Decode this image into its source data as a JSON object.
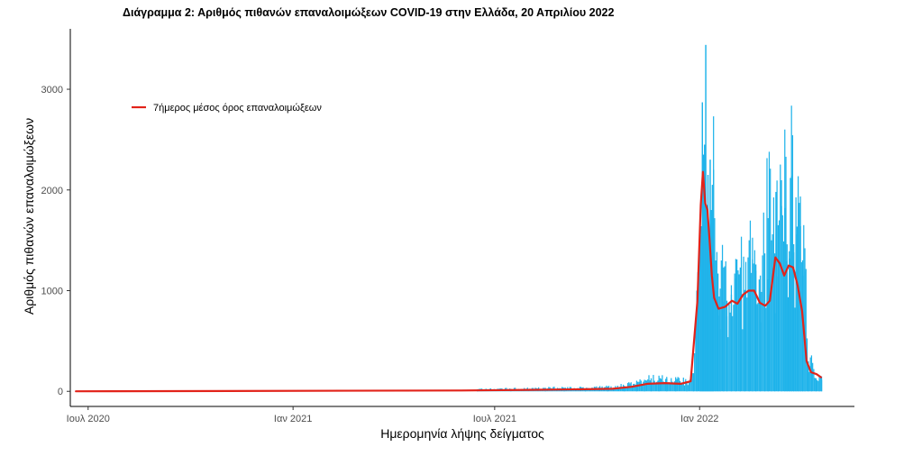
{
  "chart_data": {
    "type": "bar",
    "title": "Διάγραμμα 2: Αριθμός πιθανών επαναλοιμώξεων COVID-19 στην Ελλάδα, 20 Απριλίου 2022",
    "xlabel": "Ημερομηνία λήψης δείγματος",
    "ylabel": "Αριθμός πιθανών επαναλοιμώξεων",
    "x_range": [
      "2020-06-15",
      "2022-05-20"
    ],
    "ylim": [
      -150,
      3600
    ],
    "x_ticks": [
      {
        "date": "2020-07-01",
        "label": "Ιουλ 2020"
      },
      {
        "date": "2021-01-01",
        "label": "Ιαν 2021"
      },
      {
        "date": "2021-07-01",
        "label": "Ιουλ 2021"
      },
      {
        "date": "2022-01-01",
        "label": "Ιαν 2022"
      }
    ],
    "y_ticks": [
      0,
      1000,
      2000,
      3000
    ],
    "bar_color": "#1fb3ea",
    "grid": false,
    "legend": {
      "position": "top-left",
      "entries": [
        {
          "label": "7ήμερος μέσος όρος επαναλοιμώξεων",
          "color": "#e2231a"
        }
      ]
    },
    "series": [
      {
        "type": "bar",
        "values": [
          [
            "2021-06-15",
            20
          ],
          [
            "2021-07-15",
            25
          ],
          [
            "2021-08-15",
            30
          ],
          [
            "2021-09-01",
            35
          ],
          [
            "2021-09-20",
            30
          ],
          [
            "2021-10-10",
            40
          ],
          [
            "2021-10-25",
            55
          ],
          [
            "2021-11-05",
            80
          ],
          [
            "2021-11-12",
            115
          ],
          [
            "2021-11-18",
            130
          ],
          [
            "2021-11-25",
            120
          ],
          [
            "2021-12-02",
            125
          ],
          [
            "2021-12-10",
            110
          ],
          [
            "2021-12-20",
            90
          ],
          [
            "2021-12-26",
            180
          ],
          [
            "2021-12-29",
            1000
          ],
          [
            "2022-01-01",
            1550
          ],
          [
            "2022-01-02",
            1640
          ],
          [
            "2022-01-03",
            2870
          ],
          [
            "2022-01-04",
            2350
          ],
          [
            "2022-01-05",
            2450
          ],
          [
            "2022-01-06",
            3440
          ],
          [
            "2022-01-07",
            1850
          ],
          [
            "2022-01-08",
            2150
          ],
          [
            "2022-01-09",
            1600
          ],
          [
            "2022-01-10",
            2300
          ],
          [
            "2022-01-11",
            1800
          ],
          [
            "2022-01-12",
            2050
          ],
          [
            "2022-01-13",
            2200
          ],
          [
            "2022-01-15",
            1300
          ],
          [
            "2022-01-17",
            1170
          ],
          [
            "2022-01-19",
            1020
          ],
          [
            "2022-01-22",
            1230
          ],
          [
            "2022-01-25",
            900
          ],
          [
            "2022-01-29",
            960
          ],
          [
            "2022-02-02",
            1120
          ],
          [
            "2022-02-06",
            1230
          ],
          [
            "2022-02-10",
            1000
          ],
          [
            "2022-02-14",
            1500
          ],
          [
            "2022-02-17",
            1310
          ],
          [
            "2022-02-20",
            1260
          ],
          [
            "2022-02-24",
            1150
          ],
          [
            "2022-02-28",
            1370
          ],
          [
            "2022-03-03",
            1720
          ],
          [
            "2022-03-06",
            1500
          ],
          [
            "2022-03-09",
            1370
          ],
          [
            "2022-03-12",
            1650
          ],
          [
            "2022-03-15",
            1840
          ],
          [
            "2022-03-18",
            1820
          ],
          [
            "2022-03-20",
            1460
          ],
          [
            "2022-03-22",
            1320
          ],
          [
            "2022-03-24",
            2140
          ],
          [
            "2022-03-26",
            1380
          ],
          [
            "2022-03-28",
            1560
          ],
          [
            "2022-03-30",
            1700
          ],
          [
            "2022-04-01",
            1640
          ],
          [
            "2022-04-03",
            1150
          ],
          [
            "2022-04-05",
            1190
          ],
          [
            "2022-04-08",
            300
          ],
          [
            "2022-04-11",
            250
          ],
          [
            "2022-04-15",
            130
          ],
          [
            "2022-04-18",
            120
          ],
          [
            "2022-04-20",
            115
          ]
        ]
      },
      {
        "type": "line",
        "name": "7ήμερος μέσος όρος επαναλοιμώξεων",
        "color": "#e2231a",
        "values": [
          [
            "2020-06-20",
            0
          ],
          [
            "2021-06-01",
            8
          ],
          [
            "2021-08-01",
            15
          ],
          [
            "2021-09-15",
            20
          ],
          [
            "2021-10-15",
            25
          ],
          [
            "2021-11-01",
            45
          ],
          [
            "2021-11-15",
            75
          ],
          [
            "2021-12-01",
            82
          ],
          [
            "2021-12-15",
            75
          ],
          [
            "2021-12-24",
            100
          ],
          [
            "2021-12-30",
            900
          ],
          [
            "2022-01-02",
            1850
          ],
          [
            "2022-01-04",
            2180
          ],
          [
            "2022-01-06",
            1870
          ],
          [
            "2022-01-08",
            1800
          ],
          [
            "2022-01-10",
            1500
          ],
          [
            "2022-01-12",
            1150
          ],
          [
            "2022-01-14",
            930
          ],
          [
            "2022-01-18",
            820
          ],
          [
            "2022-01-24",
            840
          ],
          [
            "2022-01-30",
            900
          ],
          [
            "2022-02-04",
            870
          ],
          [
            "2022-02-09",
            960
          ],
          [
            "2022-02-14",
            1000
          ],
          [
            "2022-02-19",
            1000
          ],
          [
            "2022-02-24",
            880
          ],
          [
            "2022-03-01",
            850
          ],
          [
            "2022-03-05",
            900
          ],
          [
            "2022-03-10",
            1330
          ],
          [
            "2022-03-14",
            1270
          ],
          [
            "2022-03-18",
            1150
          ],
          [
            "2022-03-22",
            1250
          ],
          [
            "2022-03-26",
            1230
          ],
          [
            "2022-03-30",
            1050
          ],
          [
            "2022-04-03",
            800
          ],
          [
            "2022-04-07",
            300
          ],
          [
            "2022-04-11",
            190
          ],
          [
            "2022-04-16",
            170
          ],
          [
            "2022-04-20",
            140
          ]
        ]
      }
    ]
  }
}
